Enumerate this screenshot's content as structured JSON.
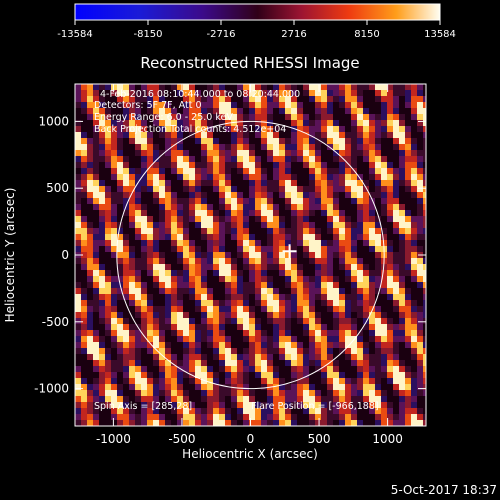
{
  "chart_data": {
    "type": "heatmap",
    "title": "Reconstructed RHESSI Image",
    "xlabel": "Heliocentric X (arcsec)",
    "ylabel": "Heliocentric Y (arcsec)",
    "xlim": [
      -1280,
      1280
    ],
    "ylim": [
      -1280,
      1280
    ],
    "x_ticks": [
      -1000,
      -500,
      0,
      500,
      1000
    ],
    "y_ticks": [
      -1000,
      -500,
      0,
      500,
      1000
    ],
    "colorbar": {
      "min": -13584,
      "max": 13584,
      "tick_labels": [
        "-13584",
        "-8150",
        "-2716",
        "2716",
        "8150",
        "13584"
      ],
      "colormap": "blue-purple-red-yellow-white"
    },
    "annotations": {
      "time_range": "4-Feb-2016 08:10:44.000 to 08:20:44.000",
      "detectors": "Detectors: 5F 7F, Att 0",
      "energy_range": "Energy Range: 6.0 - 25.0 keV",
      "method": "Back Projection   Total counts: 4.512e+04",
      "spin_axis": "Spin Axis = [285,28]",
      "flare_position": "Flare Position = [-966,188]"
    },
    "solar_limb_radius": 975,
    "marker_position": [
      285,
      28
    ],
    "grid": false,
    "date_stamp": "5-Oct-2017 18:37"
  }
}
